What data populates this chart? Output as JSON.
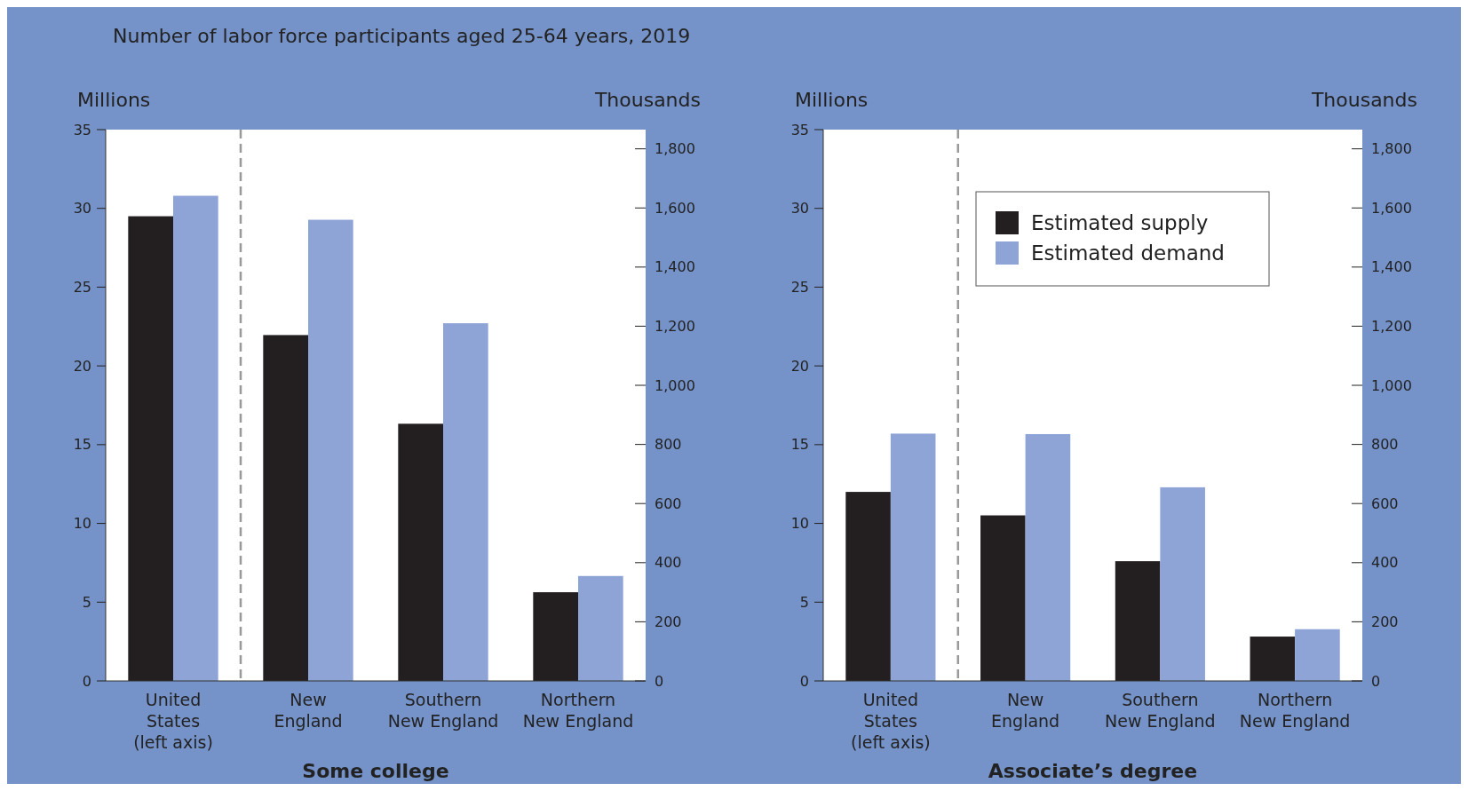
{
  "chart_data": [
    {
      "type": "bar",
      "title": "Number of labor force participants aged 25-64 years, 2019",
      "xlabel": "Some college",
      "ylabel": "Millions",
      "y2label": "Thousands",
      "categories": [
        "United\nStates\n(left axis)",
        "New\nEngland",
        "Southern\nNew England",
        "Northern\nNew England"
      ],
      "series": [
        {
          "color": "#231f20",
          "values": [
            29.5,
            null,
            null,
            null
          ]
        },
        {
          "color": "#8ea3d6",
          "values": [
            30.8,
            null,
            null,
            null
          ]
        },
        {
          "color": "#231f20",
          "axis": "y2",
          "values": [
            null,
            1170,
            870,
            300
          ]
        },
        {
          "color": "#8ea3d6",
          "axis": "y2",
          "values": [
            null,
            1560,
            1210,
            355
          ]
        }
      ],
      "ylim": [
        0,
        35
      ],
      "yticks": [
        0,
        5,
        10,
        15,
        20,
        25,
        30,
        35
      ],
      "y2lim": [
        0,
        1865
      ],
      "y2ticks": [
        0,
        200,
        400,
        600,
        800,
        {
          "value": 1000,
          "label": "1,000"
        },
        {
          "value": 1200,
          "label": "1,200"
        },
        {
          "value": 1400,
          "label": "1,400"
        },
        {
          "value": 1600,
          "label": "1,600"
        },
        {
          "value": 1800,
          "label": "1,800"
        }
      ],
      "grid": false
    },
    {
      "type": "bar",
      "xlabel": "Associate’s degree",
      "ylabel": "Millions",
      "y2label": "Thousands",
      "categories": [
        "United\nStates\n(left axis)",
        "New\nEngland",
        "Southern\nNew England",
        "Northern\nNew England"
      ],
      "series": [
        {
          "name": "Estimated supply",
          "color": "#231f20",
          "values": [
            12.0,
            null,
            null,
            null
          ]
        },
        {
          "name": "Estimated demand",
          "color": "#8ea3d6",
          "values": [
            15.7,
            null,
            null,
            null
          ]
        },
        {
          "color": "#231f20",
          "axis": "y2",
          "values": [
            null,
            560,
            405,
            150
          ]
        },
        {
          "color": "#8ea3d6",
          "axis": "y2",
          "values": [
            null,
            835,
            655,
            175
          ]
        }
      ],
      "ylim": [
        0,
        35
      ],
      "yticks": [
        0,
        5,
        10,
        15,
        20,
        25,
        30,
        35
      ],
      "y2lim": [
        0,
        1865
      ],
      "y2ticks": [
        0,
        200,
        400,
        600,
        800,
        {
          "value": 1000,
          "label": "1,000"
        },
        {
          "value": 1200,
          "label": "1,200"
        },
        {
          "value": 1400,
          "label": "1,400"
        },
        {
          "value": 1600,
          "label": "1,600"
        },
        {
          "value": 1800,
          "label": "1,800"
        }
      ],
      "legend": "top right",
      "grid": false
    }
  ]
}
